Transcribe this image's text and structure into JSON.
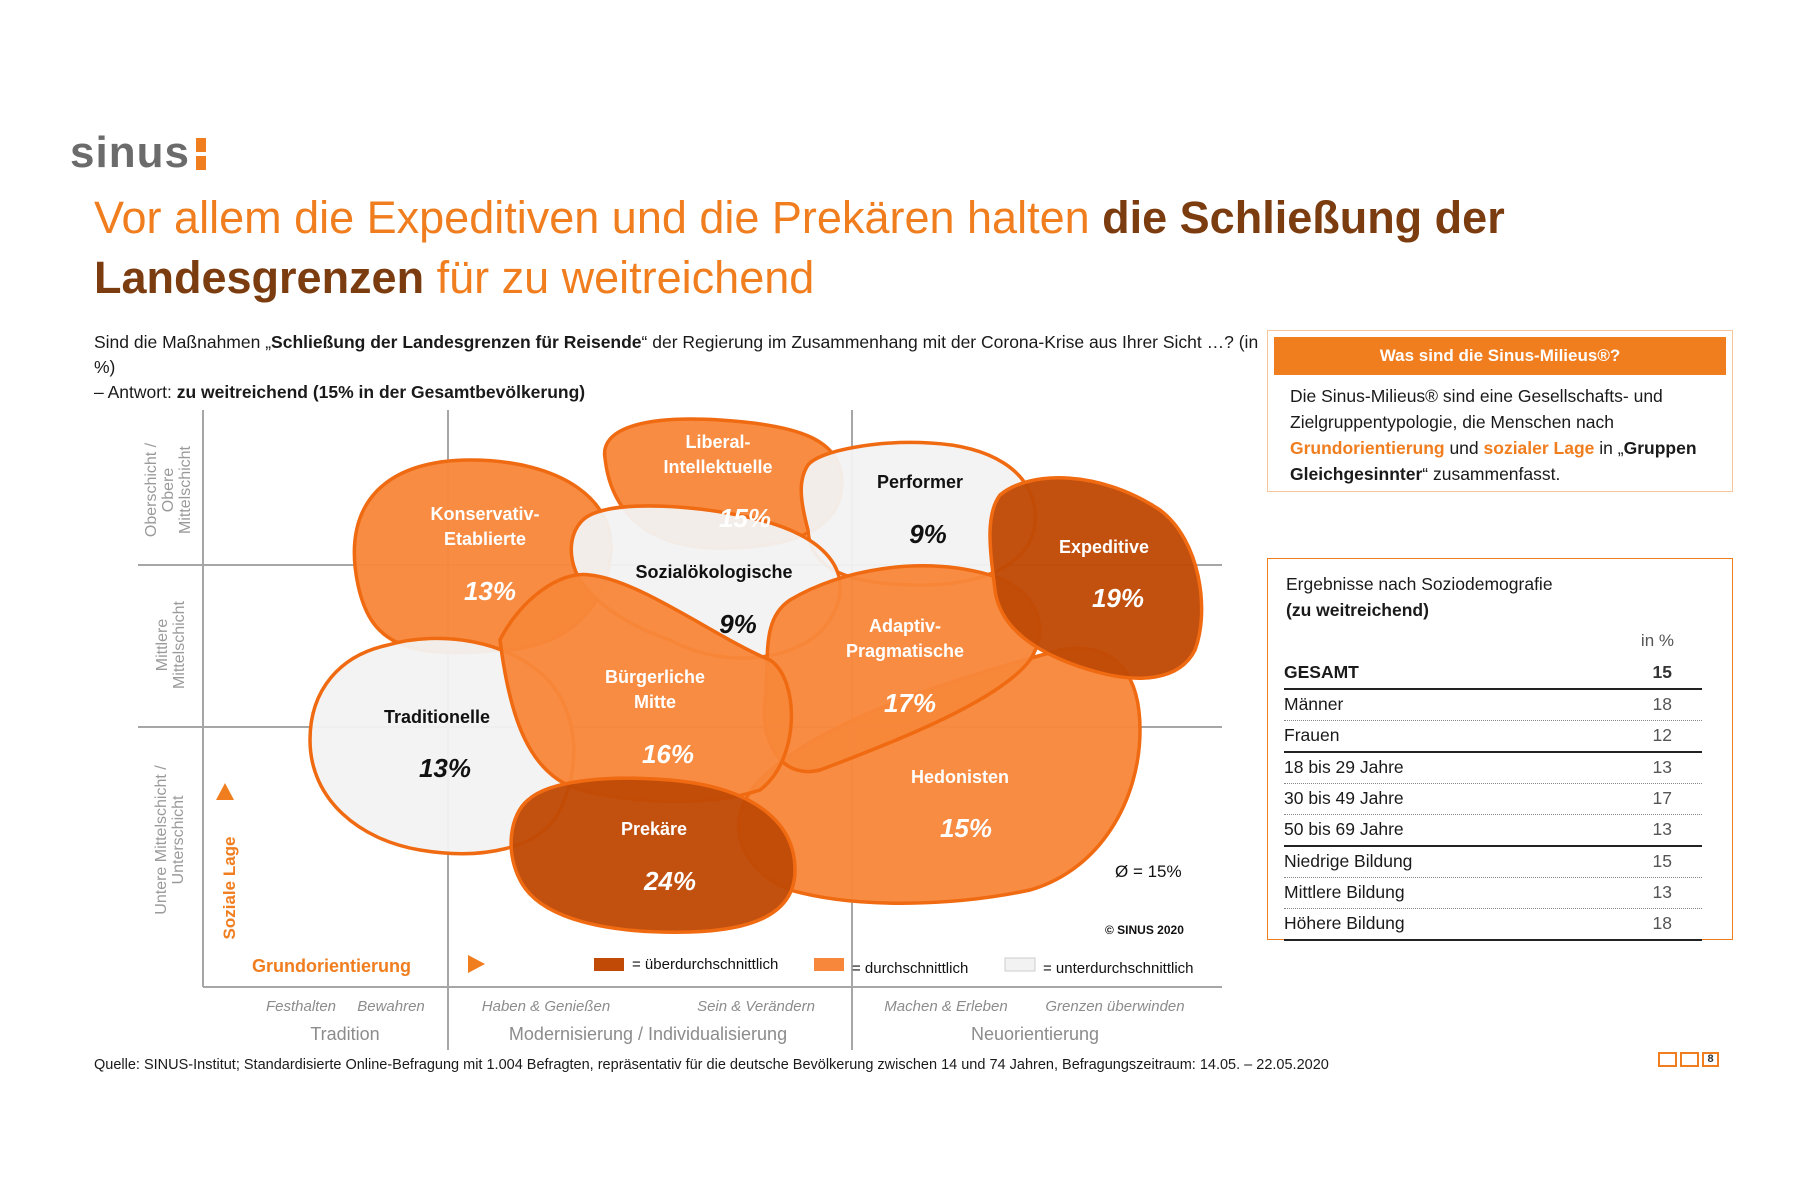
{
  "logo": "sinus",
  "title": {
    "part1": "Vor allem die Expeditiven und die Prekären halten ",
    "bold": "die Schließung der Landesgrenzen",
    "part2": " für zu weitreichend"
  },
  "question": {
    "p1": "Sind die Maßnahmen „",
    "p1_bold": "Schließung der Landesgrenzen für Reisende",
    "p1_end": "“ der Regierung im Zusammenhang mit der Corona-Krise aus Ihrer Sicht …? (in %)",
    "p2": "– Antwort: ",
    "p2_bold": "zu weitreichend (15% in der Gesamtbevölkerung)"
  },
  "info_box": {
    "header": "Was sind die Sinus-Milieus®?",
    "t1": "Die Sinus-Milieus® sind eine Gesellschafts- und Zielgruppentypologie, die Menschen nach ",
    "h1": "Grundorientierung",
    "t2": " und ",
    "h2": "sozialer Lage",
    "t3": " in „",
    "b1": "Gruppen Gleichgesinnter",
    "t4": "“ zusammenfasst."
  },
  "results": {
    "title": "Ergebnisse nach Soziodemografie",
    "subtitle": "(zu weitreichend)",
    "unit": "in %",
    "rows": [
      {
        "label": "GESAMT",
        "value": "15"
      },
      {
        "label": "Männer",
        "value": "18"
      },
      {
        "label": "Frauen",
        "value": "12"
      },
      {
        "label": "18 bis 29 Jahre",
        "value": "13"
      },
      {
        "label": "30 bis 49 Jahre",
        "value": "17"
      },
      {
        "label": "50 bis 69 Jahre",
        "value": "13"
      },
      {
        "label": "Niedrige Bildung",
        "value": "15"
      },
      {
        "label": "Mittlere Bildung",
        "value": "13"
      },
      {
        "label": "Höhere Bildung",
        "value": "18"
      }
    ]
  },
  "chart_data": {
    "type": "milieu-map",
    "title": "Vor allem die Expeditiven und die Prekären halten die Schließung der Landesgrenzen für zu weitreichend",
    "milieus": [
      {
        "name": "Konservativ-Etablierte",
        "label_lines": [
          "Konservativ-",
          "Etablierte"
        ],
        "value": 13,
        "category": "avg"
      },
      {
        "name": "Liberal-Intellektuelle",
        "label_lines": [
          "Liberal-",
          "Intellektuelle"
        ],
        "value": 15,
        "category": "avg"
      },
      {
        "name": "Performer",
        "label_lines": [
          "Performer"
        ],
        "value": 9,
        "category": "below"
      },
      {
        "name": "Expeditive",
        "label_lines": [
          "Expeditive"
        ],
        "value": 19,
        "category": "above"
      },
      {
        "name": "Sozialökologische",
        "label_lines": [
          "Sozialökologische"
        ],
        "value": 9,
        "category": "below"
      },
      {
        "name": "Adaptiv-Pragmatische",
        "label_lines": [
          "Adaptiv-",
          "Pragmatische"
        ],
        "value": 17,
        "category": "avg"
      },
      {
        "name": "Bürgerliche Mitte",
        "label_lines": [
          "Bürgerliche",
          "Mitte"
        ],
        "value": 16,
        "category": "avg"
      },
      {
        "name": "Traditionelle",
        "label_lines": [
          "Traditionelle"
        ],
        "value": 13,
        "category": "below"
      },
      {
        "name": "Prekäre",
        "label_lines": [
          "Prekäre"
        ],
        "value": 24,
        "category": "above"
      },
      {
        "name": "Hedonisten",
        "label_lines": [
          "Hedonisten"
        ],
        "value": 15,
        "category": "avg"
      }
    ],
    "value_suffix": "%",
    "average": "Ø = 15%",
    "copyright": "© SINUS 2020",
    "y_axis_label": "Soziale Lage",
    "x_axis_label": "Grundorientierung",
    "y_levels": [
      "Oberschicht / Obere Mittelschicht",
      "Mittlere Mittelschicht",
      "Untere Mittelschicht / Unterschicht"
    ],
    "x_sublabels": [
      "Festhalten",
      "Bewahren",
      "Haben & Genießen",
      "Sein & Verändern",
      "Machen & Erleben",
      "Grenzen überwinden"
    ],
    "x_groups": [
      "Tradition",
      "Modernisierung / Individualisierung",
      "Neuorientierung"
    ],
    "legend": [
      {
        "label": "= überdurchschnittlich",
        "color": "#c04a06"
      },
      {
        "label": "= durchschnittlich",
        "color": "#f7873a"
      },
      {
        "label": "= unterdurchschnittlich",
        "color": "#f2f2f2"
      }
    ],
    "colors": {
      "above": "#c04a06",
      "avg": "#f7873a",
      "below": "#f2f2f2",
      "stroke": "#f06a12"
    }
  },
  "source": "Quelle: SINUS-Institut; Standardisierte Online-Befragung mit 1.004 Befragten, repräsentativ für die deutsche Bevölkerung zwischen 14 und 74 Jahren, Befragungszeitraum: 14.05. – 22.05.2020",
  "page_number": "8"
}
